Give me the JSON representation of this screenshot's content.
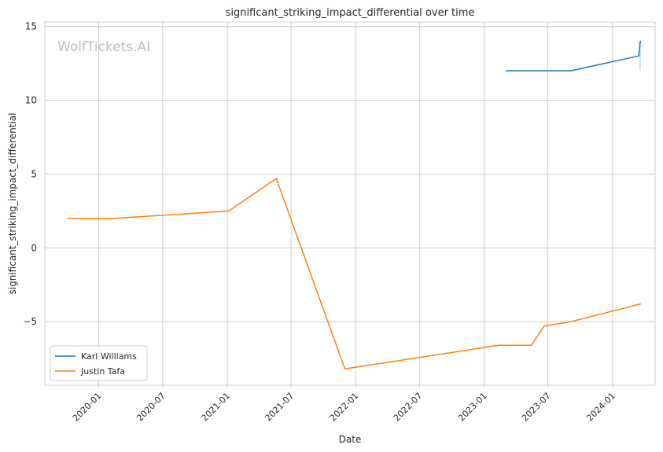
{
  "watermark": "WolfTickets.AI",
  "chart_data": {
    "type": "line",
    "title": "significant_striking_impact_differential over time",
    "xlabel": "Date",
    "ylabel": "significant_striking_impact_differential",
    "x_axis": {
      "kind": "date",
      "min": "2019-08-01",
      "max": "2024-05-01",
      "ticks": [
        "2020-01-01",
        "2020-07-01",
        "2021-01-01",
        "2021-07-01",
        "2022-01-01",
        "2022-07-01",
        "2023-01-01",
        "2023-07-01",
        "2024-01-01"
      ],
      "tick_labels": [
        "2020-01",
        "2020-07",
        "2021-01",
        "2021-07",
        "2022-01",
        "2022-07",
        "2023-01",
        "2023-07",
        "2024-01"
      ]
    },
    "y_axis": {
      "min": -9.3,
      "max": 15.3,
      "ticks": [
        15,
        10,
        5,
        0,
        -5
      ],
      "tick_labels": [
        "15",
        "10",
        "5",
        "0",
        "−5"
      ]
    },
    "grid": true,
    "legend": {
      "position": "lower-left"
    },
    "series": [
      {
        "name": "Karl Williams",
        "color": "#1f77b4",
        "points": [
          [
            "2023-03-05",
            12.0
          ],
          [
            "2023-09-05",
            12.0
          ],
          [
            "2024-03-15",
            13.0
          ],
          [
            "2024-03-20",
            14.0
          ]
        ],
        "band": {
          "date": "2024-03-19",
          "low": 12.0,
          "high": 14.0
        }
      },
      {
        "name": "Justin Tafa",
        "color": "#ff7f0e",
        "points": [
          [
            "2019-10-05",
            2.0
          ],
          [
            "2020-02-15",
            2.0
          ],
          [
            "2021-01-05",
            2.5
          ],
          [
            "2021-05-20",
            4.7
          ],
          [
            "2021-12-01",
            -8.2
          ],
          [
            "2023-02-10",
            -6.6
          ],
          [
            "2023-05-15",
            -6.6
          ],
          [
            "2023-06-20",
            -5.3
          ],
          [
            "2023-09-05",
            -5.0
          ],
          [
            "2024-03-20",
            -3.8
          ]
        ]
      }
    ]
  }
}
